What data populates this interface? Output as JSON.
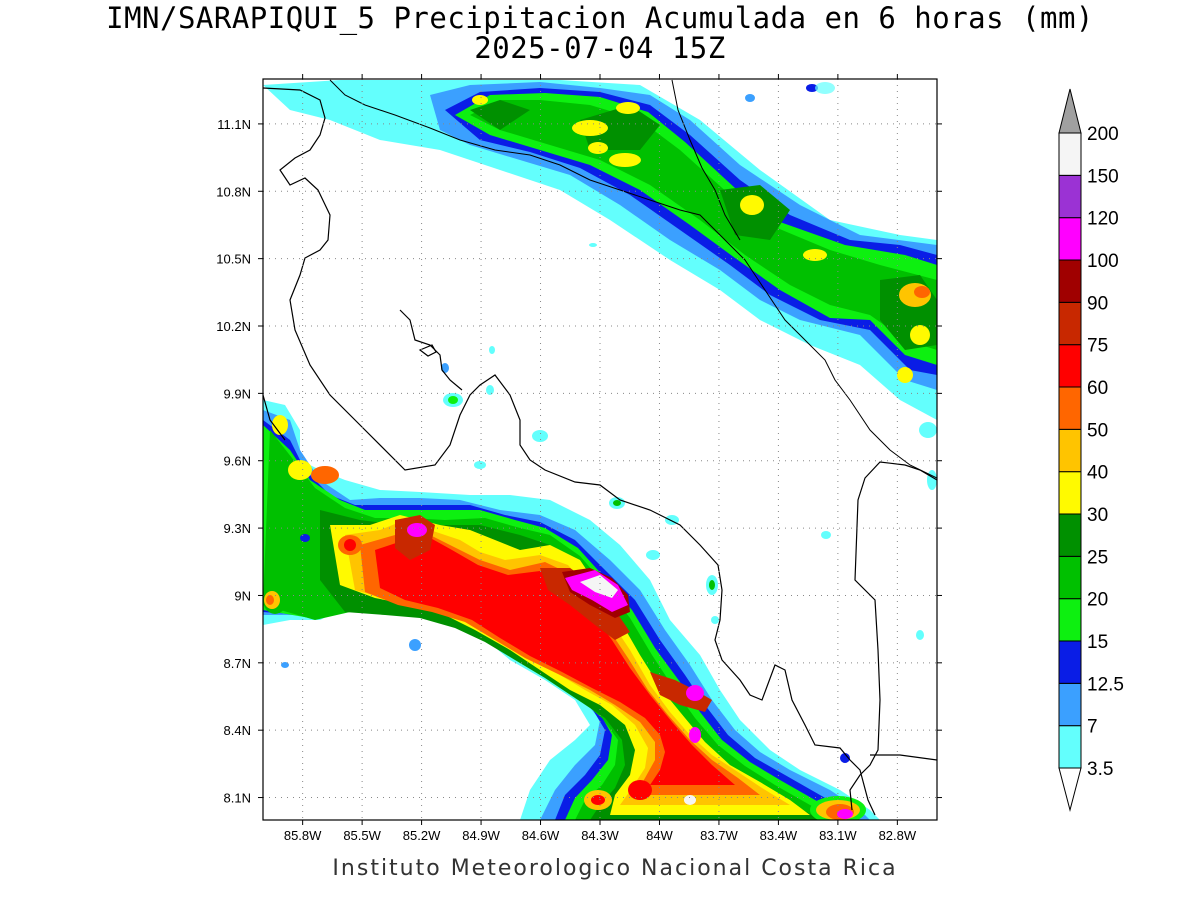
{
  "title_line1": "IMN/SARAPIQUI_5 Precipitacion Acumulada en 6 horas (mm)",
  "title_line2": "2025-07-04 15Z",
  "credit": "Instituto Meteorologico Nacional Costa Rica",
  "map": {
    "lon_range": [
      -86.0,
      -82.6
    ],
    "lat_range": [
      8.0,
      11.3
    ],
    "lat_ticks": [
      "11.1N",
      "10.8N",
      "10.5N",
      "10.2N",
      "9.9N",
      "9.6N",
      "9.3N",
      "9N",
      "8.7N",
      "8.4N",
      "8.1N"
    ],
    "lat_values": [
      11.1,
      10.8,
      10.5,
      10.2,
      9.9,
      9.6,
      9.3,
      9.0,
      8.7,
      8.4,
      8.1
    ],
    "lon_ticks": [
      "85.8W",
      "85.5W",
      "85.2W",
      "84.9W",
      "84.6W",
      "84.3W",
      "84W",
      "83.7W",
      "83.4W",
      "83.1W",
      "82.8W"
    ],
    "lon_values": [
      -85.8,
      -85.5,
      -85.2,
      -84.9,
      -84.6,
      -84.3,
      -84.0,
      -83.7,
      -83.4,
      -83.1,
      -82.8
    ],
    "grid": "dotted"
  },
  "colorbar": {
    "units": "mm",
    "labels": [
      "3.5",
      "7",
      "12.5",
      "15",
      "20",
      "25",
      "30",
      "40",
      "50",
      "60",
      "75",
      "90",
      "100",
      "120",
      "150",
      "200"
    ],
    "colors": [
      "#63fffd",
      "#3ba0ff",
      "#0a1de6",
      "#0df010",
      "#00c000",
      "#009000",
      "#fffa00",
      "#ffc400",
      "#ff6600",
      "#ff0000",
      "#c82800",
      "#a00000",
      "#ff00ff",
      "#9b32d4",
      "#f5f5f5",
      "#a0a0a0"
    ]
  }
}
